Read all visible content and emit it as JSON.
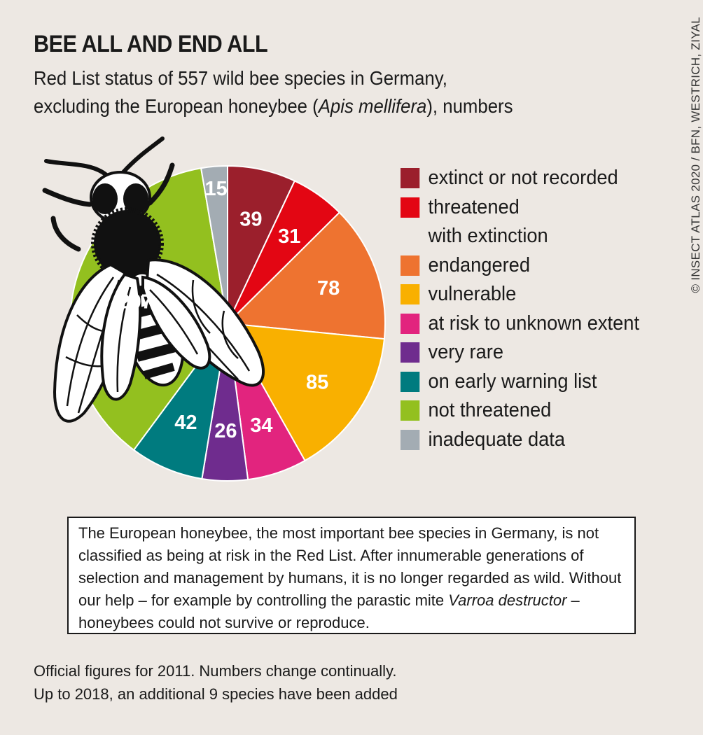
{
  "header": {
    "title": "BEE ALL AND END ALL",
    "subtitle_line1": "Red List status of 557 wild bee species in Germany,",
    "subtitle_line2_pre": "excluding the European honeybee (",
    "subtitle_line2_italic": "Apis mellifera",
    "subtitle_line2_post": "), numbers"
  },
  "credit": "© INSECT ATLAS 2020 / BFN, WESTRICH, ZIYAL",
  "chart_data": {
    "type": "pie",
    "title": "BEE ALL AND END ALL",
    "total": 557,
    "slices": [
      {
        "label": "extinct or not recorded",
        "value": 39,
        "color": "#9b1f2c"
      },
      {
        "label": "threatened with extinction",
        "value": 31,
        "color": "#e30613"
      },
      {
        "label": "endangered",
        "value": 78,
        "color": "#ee7330"
      },
      {
        "label": "vulnerable",
        "value": 85,
        "color": "#f9b000"
      },
      {
        "label": "at risk to unknown extent",
        "value": 34,
        "color": "#e2247e"
      },
      {
        "label": "very rare",
        "value": 26,
        "color": "#6f2c8e"
      },
      {
        "label": "on early warning list",
        "value": 42,
        "color": "#007b7f"
      },
      {
        "label": "not threatened",
        "value": 207,
        "color": "#93c01f"
      },
      {
        "label": "inadequate data",
        "value": 15,
        "color": "#a3acb3"
      }
    ],
    "legend_placement": "right",
    "start_angle_deg": 0,
    "direction": "clockwise"
  },
  "legend": [
    {
      "lines": [
        "extinct or not recorded"
      ],
      "color": "#9b1f2c"
    },
    {
      "lines": [
        "threatened",
        "with extinction"
      ],
      "color": "#e30613"
    },
    {
      "lines": [
        "endangered"
      ],
      "color": "#ee7330"
    },
    {
      "lines": [
        "vulnerable"
      ],
      "color": "#f9b000"
    },
    {
      "lines": [
        "at risk to unknown extent"
      ],
      "color": "#e2247e"
    },
    {
      "lines": [
        "very rare"
      ],
      "color": "#6f2c8e"
    },
    {
      "lines": [
        "on early warning list"
      ],
      "color": "#007b7f"
    },
    {
      "lines": [
        "not threatened"
      ],
      "color": "#93c01f"
    },
    {
      "lines": [
        "inadequate data"
      ],
      "color": "#a3acb3"
    }
  ],
  "note": {
    "text_pre": "The European honeybee, the most important bee species in Germany, is not classified as being at risk in the Red List. After innumerable generations of selection and management by humans, it is no longer regarded as wild. Without our help – for example by controlling the parastic mite ",
    "text_italic": "Varroa destructor",
    "text_post": " – honeybees could not survive or reproduce."
  },
  "footnote": {
    "line1": "Official figures for 2011. Numbers change continually.",
    "line2": "Up to 2018, an additional 9 species have been added"
  }
}
